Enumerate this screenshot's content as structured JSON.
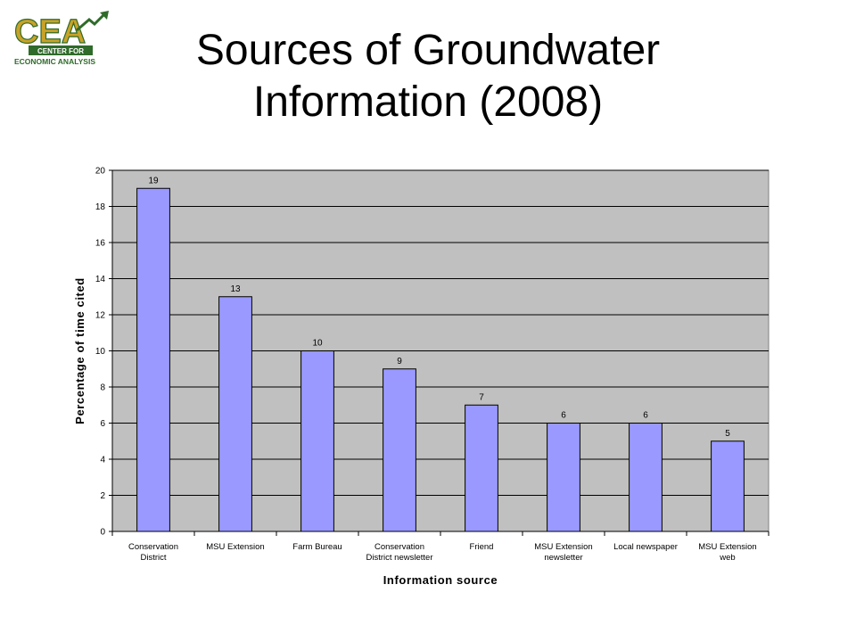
{
  "logo": {
    "letters": "CEA",
    "line1": "CENTER FOR",
    "line2": "ECONOMIC ANALYSIS",
    "colors": {
      "green": "#2f6b2a",
      "gold": "#c9a227"
    }
  },
  "slide": {
    "title_line1": "Sources of Groundwater",
    "title_line2": "Information (2008)"
  },
  "chart_data": {
    "type": "bar",
    "categories": [
      [
        "Conservation",
        "District"
      ],
      [
        "MSU Extension"
      ],
      [
        "Farm Bureau"
      ],
      [
        "Conservation",
        "District newsletter"
      ],
      [
        "Friend"
      ],
      [
        "MSU Extension",
        "newsletter"
      ],
      [
        "Local newspaper"
      ],
      [
        "MSU Extension",
        "web"
      ]
    ],
    "values": [
      19,
      13,
      10,
      9,
      7,
      6,
      6,
      5
    ],
    "data_labels": [
      "19",
      "13",
      "10",
      "9",
      "7",
      "6",
      "6",
      "5"
    ],
    "xlabel": "Information source",
    "ylabel": "Percentage of time cited",
    "ylim": [
      0,
      20
    ],
    "yticks": [
      0,
      2,
      4,
      6,
      8,
      10,
      12,
      14,
      16,
      18,
      20
    ],
    "grid": true,
    "legend": "none",
    "colors": {
      "bar": "#9999ff",
      "plot_background": "#c0c0c0",
      "gridline": "#000000"
    }
  }
}
